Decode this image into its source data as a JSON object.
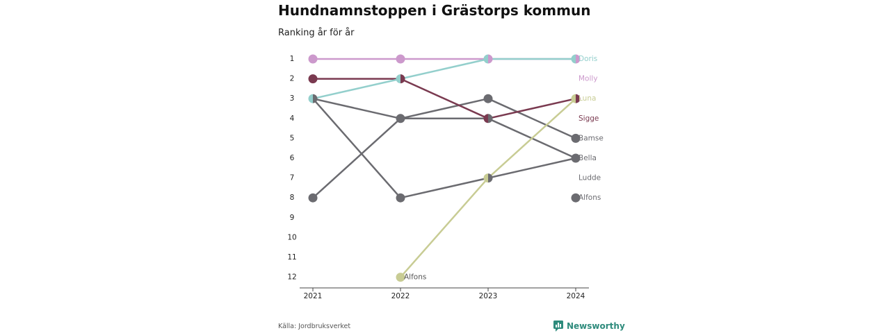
{
  "title": "Hundnamnstoppen i Grästorps kommun",
  "subtitle": "Ranking år för år",
  "source": "Källa: Jordbruksverket",
  "brand": {
    "name": "Newsworthy",
    "icon": "newsworthy-logo-icon",
    "color": "#2e8b7c"
  },
  "chart_data": {
    "type": "line",
    "title": "Hundnamnstoppen i Grästorps kommun",
    "subtitle": "Ranking år för år",
    "x": [
      "2021",
      "2022",
      "2023",
      "2024"
    ],
    "ylim": [
      1,
      12
    ],
    "y_ticks": [
      "1",
      "2",
      "3",
      "4",
      "5",
      "6",
      "7",
      "8",
      "9",
      "10",
      "11",
      "12"
    ],
    "y_reversed": true,
    "grid": false,
    "series": [
      {
        "name": "Doris",
        "color": "#93cfcc",
        "values": [
          3,
          2,
          1,
          1
        ],
        "label_ranking": 1
      },
      {
        "name": "Molly",
        "color": "#cc99cc",
        "values": [
          1,
          1,
          1,
          1
        ],
        "label_ranking": 2
      },
      {
        "name": "Luna",
        "color": "#c8cc94",
        "values": [
          null,
          12,
          7,
          3
        ],
        "label_ranking": 3
      },
      {
        "name": "Sigge",
        "color": "#7a3a50",
        "values": [
          2,
          2,
          4,
          3
        ],
        "label_ranking": 4
      },
      {
        "name": "Bamse",
        "color": "#6b6b70",
        "values": [
          3,
          4,
          3,
          5
        ],
        "label_ranking": 5
      },
      {
        "name": "Bella",
        "color": "#6b6b70",
        "values": [
          8,
          4,
          4,
          6
        ],
        "label_ranking": 6
      },
      {
        "name": "Ludde",
        "color": "#6b6b70",
        "values": [
          3,
          8,
          7,
          6
        ],
        "label_ranking": 7
      },
      {
        "name": "Alfons",
        "color": "#6b6b70",
        "values": [
          null,
          null,
          null,
          8
        ],
        "label_ranking": 8
      }
    ],
    "extra_labels": [
      {
        "text": "Alfons",
        "x": "2022",
        "y": 12
      }
    ]
  }
}
